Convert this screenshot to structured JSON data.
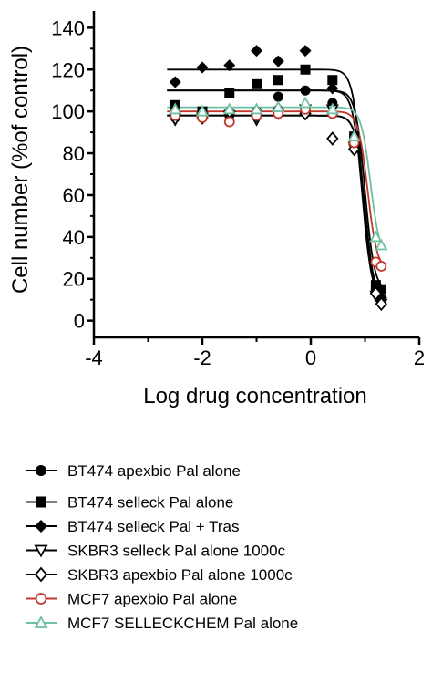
{
  "chart_data": {
    "type": "scatter",
    "title": "",
    "xlabel": "Log drug concentration",
    "ylabel": "Cell number (%of control)",
    "xlim": [
      -4,
      2
    ],
    "ylim": [
      -8,
      148
    ],
    "xticks": [
      -4,
      -2,
      0,
      2
    ],
    "yticks": [
      0,
      20,
      40,
      60,
      80,
      100,
      120,
      140
    ],
    "grid": false,
    "legend_position": "bottom",
    "series": [
      {
        "name": "BT474 apexbio Pal alone",
        "marker": "circle-filled",
        "color": "#000000",
        "x": [
          -2.5,
          -2.0,
          -1.5,
          -1.0,
          -0.6,
          -0.1,
          0.4,
          0.8,
          1.2,
          1.3
        ],
        "y": [
          97,
          97,
          98,
          100,
          107,
          110,
          104,
          84,
          15,
          10
        ],
        "fit_top": 110,
        "fit_bottom": 10,
        "fit_ec50": 0.95
      },
      {
        "name": "BT474 selleck Pal alone",
        "marker": "square-filled",
        "color": "#000000",
        "x": [
          -2.5,
          -2.0,
          -1.5,
          -1.0,
          -0.6,
          -0.1,
          0.4,
          0.8,
          1.2,
          1.3
        ],
        "y": [
          103,
          100,
          109,
          113,
          115,
          120,
          115,
          88,
          17,
          15
        ],
        "fit_top": 110,
        "fit_bottom": 14,
        "fit_ec50": 1.0
      },
      {
        "name": "BT474 selleck Pal + Tras",
        "marker": "diamond-filled",
        "color": "#000000",
        "x": [
          -2.5,
          -2.0,
          -1.5,
          -1.0,
          -0.6,
          -0.1,
          0.4,
          0.8,
          1.2,
          1.3
        ],
        "y": [
          114,
          121,
          122,
          129,
          124,
          129,
          111,
          84,
          13,
          11
        ],
        "fit_top": 120,
        "fit_bottom": 11,
        "fit_ec50": 0.95
      },
      {
        "name": "SKBR3 selleck Pal alone 1000c",
        "marker": "triangle-down-open",
        "color": "#000000",
        "x": [
          -2.5,
          -2.0,
          -1.5,
          -1.0,
          -0.6,
          -0.1,
          0.4,
          0.8,
          1.2,
          1.3
        ],
        "y": [
          96,
          97,
          98,
          96,
          99,
          101,
          101,
          83,
          12,
          8
        ],
        "fit_top": 98,
        "fit_bottom": 9,
        "fit_ec50": 1.0
      },
      {
        "name": "SKBR3 apexbio Pal alone 1000c",
        "marker": "diamond-open",
        "color": "#000000",
        "x": [
          -2.5,
          -2.0,
          -1.5,
          -1.0,
          -0.6,
          -0.1,
          0.4,
          0.8,
          1.2,
          1.3
        ],
        "y": [
          99,
          97,
          100,
          98,
          101,
          99,
          87,
          82,
          13,
          8
        ],
        "fit_top": 98,
        "fit_bottom": 8,
        "fit_ec50": 1.0
      },
      {
        "name": "MCF7 apexbio Pal alone",
        "marker": "circle-open",
        "color": "#c0392b",
        "x": [
          -2.5,
          -2.0,
          -1.5,
          -1.0,
          -0.6,
          -0.1,
          0.4,
          0.8,
          1.2,
          1.3
        ],
        "y": [
          98,
          97,
          95,
          98,
          99,
          101,
          99,
          85,
          28,
          26
        ],
        "fit_top": 100,
        "fit_bottom": 24,
        "fit_ec50": 1.05
      },
      {
        "name": "MCF7 SELLECKCHEM Pal alone",
        "marker": "triangle-up-open",
        "color": "#6fbfa2",
        "x": [
          -2.5,
          -2.0,
          -1.5,
          -1.0,
          -0.6,
          -0.1,
          0.4,
          0.8,
          1.2,
          1.3
        ],
        "y": [
          101,
          100,
          101,
          101,
          102,
          104,
          101,
          88,
          40,
          36
        ],
        "fit_top": 102,
        "fit_bottom": 30,
        "fit_ec50": 1.1
      }
    ]
  }
}
